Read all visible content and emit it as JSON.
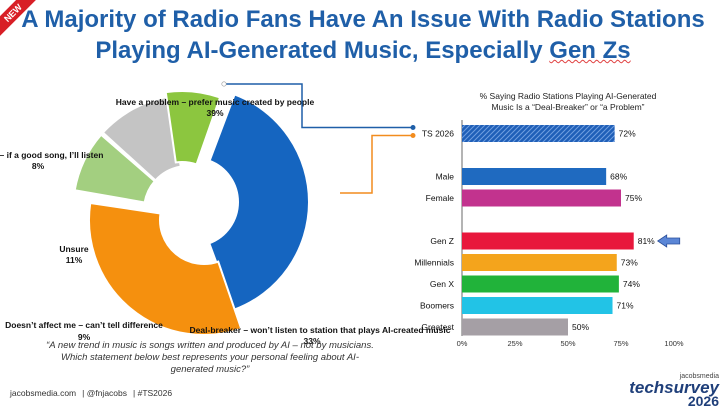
{
  "badge": "NEW",
  "title_line1": "A Majority of Radio Fans Have An Issue With Radio Stations",
  "title_line2_pre": "Playing AI-Generated Music, Especially ",
  "title_line2_gen": "Gen Zs",
  "question": "“A new trend in music is songs written and produced by AI – not by musicians. Which statement below best represents your personal feeling about AI-generated music?”",
  "footer": {
    "site": "jacobsmedia.com",
    "handle": "@fnjacobs",
    "hashtag": "#TS2026"
  },
  "logo": {
    "top": "jacobsmedia",
    "brand": "techsurvey",
    "year": "2026"
  },
  "colors": {
    "title": "#1f5fa8",
    "accent_orange": "#f28c1e",
    "accent_blue": "#1f6ac0"
  },
  "chart_data": [
    {
      "type": "pie",
      "variant": "donut",
      "slices": [
        {
          "label": "Have a problem – prefer music created by people",
          "value_label": "39%",
          "value": 39,
          "color": "#1565c0"
        },
        {
          "label": "Deal-breaker – won’t listen to station that plays AI-created music",
          "value_label": "33%",
          "value": 33,
          "color": "#f5900e"
        },
        {
          "label": "Doesn’t affect me – can’t tell difference",
          "value_label": "9%",
          "value": 9,
          "color": "#a3cf80"
        },
        {
          "label": "Unsure",
          "value_label": "11%",
          "value": 11,
          "color": "#c4c4c4"
        },
        {
          "label": "with it – if a good song, I’ll listen",
          "value_label": "8%",
          "value": 8,
          "color": "#8cc63f"
        }
      ]
    },
    {
      "type": "bar",
      "orientation": "horizontal",
      "title_line1": "% Saying Radio Stations Playing AI-Generated",
      "title_line2": "Music Is a “Deal-Breaker” or “a Problem”",
      "categories": [
        "TS 2026",
        "Male",
        "Female",
        "Gen Z",
        "Millennials",
        "Gen X",
        "Boomers",
        "Greatest"
      ],
      "values": [
        72,
        68,
        75,
        81,
        73,
        74,
        71,
        50
      ],
      "value_labels": [
        "72%",
        "68%",
        "75%",
        "81%",
        "73%",
        "74%",
        "71%",
        "50%"
      ],
      "colors": [
        "#1f5fb8",
        "#1f6ac0",
        "#c2338e",
        "#e8173c",
        "#f4a41c",
        "#21b33a",
        "#22c3e6",
        "#a59fa5"
      ],
      "hatched": [
        true,
        false,
        false,
        false,
        false,
        false,
        false,
        false
      ],
      "gaps_after": [
        0,
        2
      ],
      "xlim": [
        0,
        100
      ],
      "xticks": [
        "0%",
        "25%",
        "50%",
        "75%",
        "100%"
      ],
      "highlight": "Gen Z"
    }
  ]
}
